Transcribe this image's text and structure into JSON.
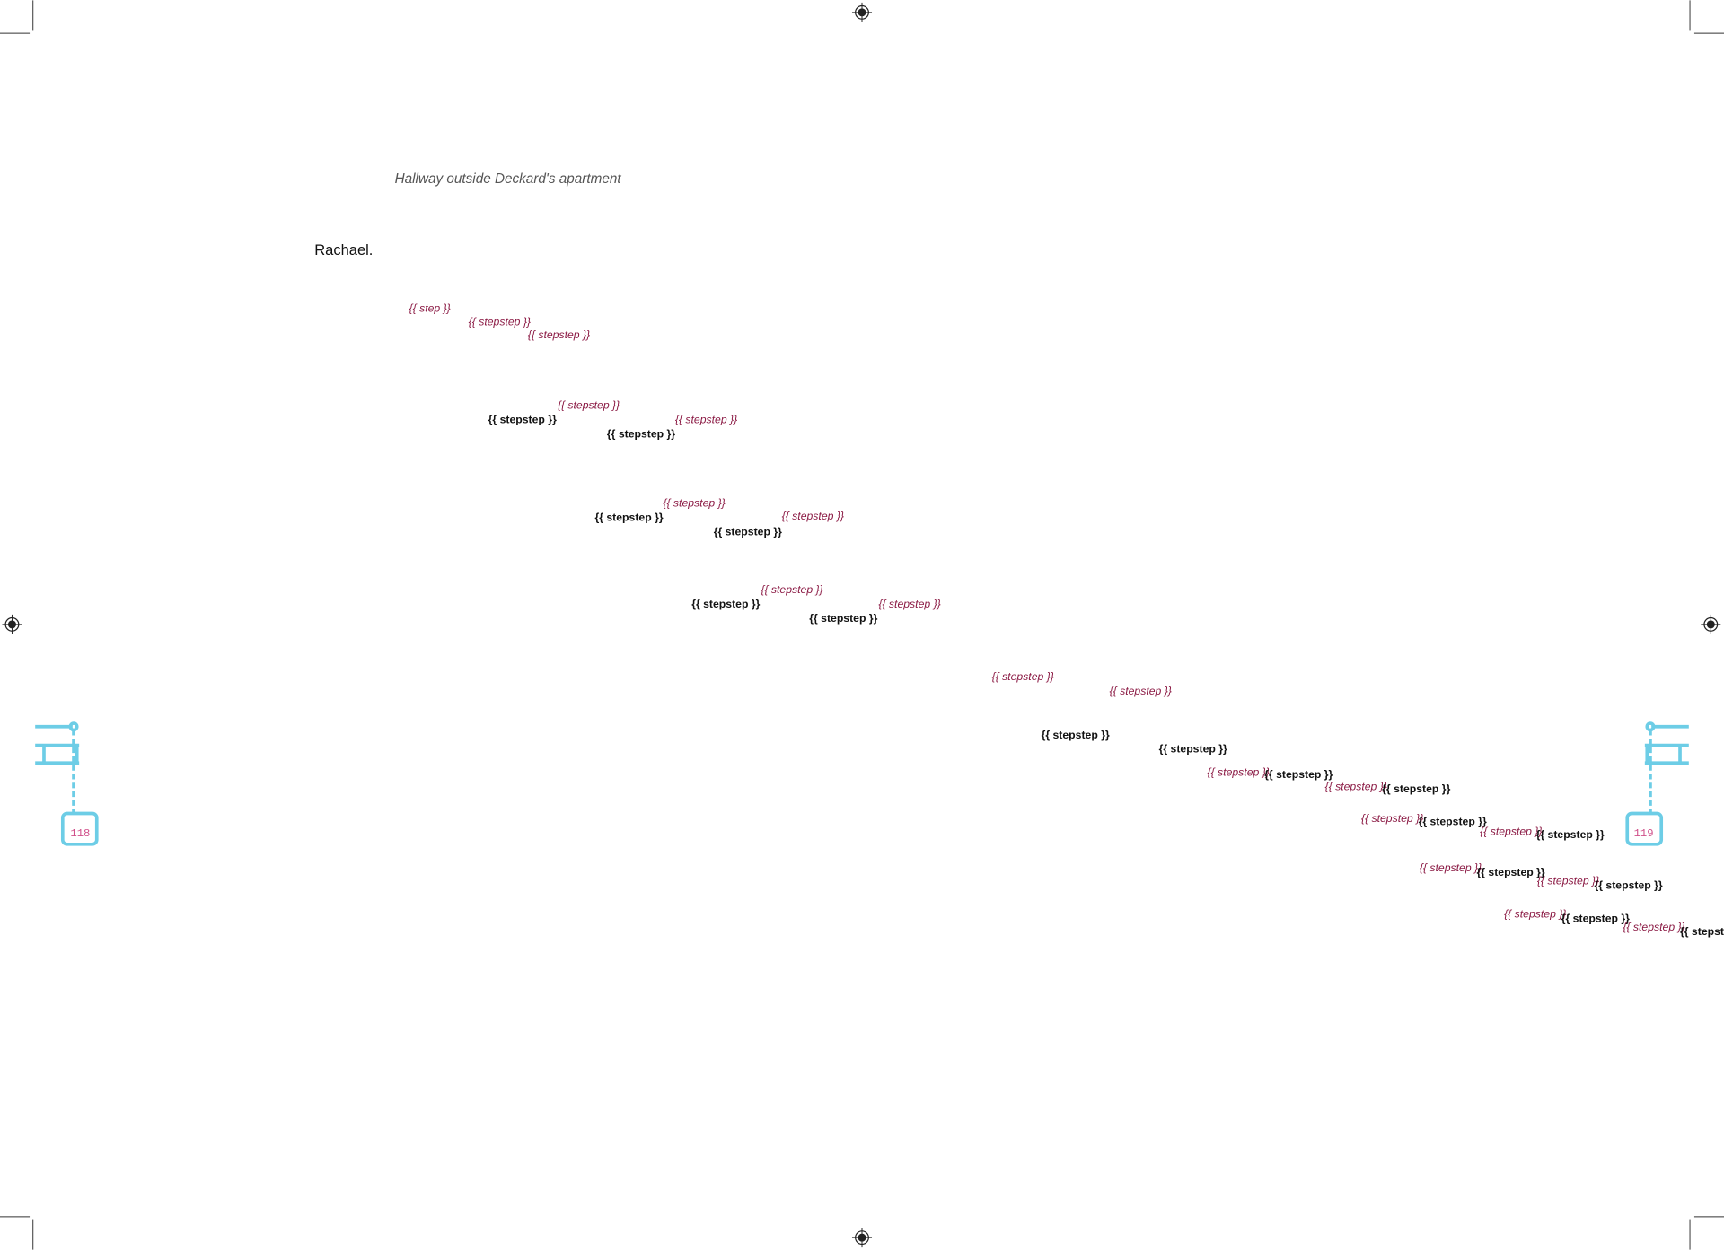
{
  "caption": "Hallway outside Deckard's apartment",
  "speaker": "Rachael.",
  "steps": [
    {
      "text": "{{ step }}",
      "color": "#8b1a44"
    },
    {
      "text": "{{ stepstep }}",
      "color": "#8b1a44"
    },
    {
      "text": "{{ stepstep }}",
      "color": "#8b1a44"
    },
    {
      "text": "{{ stepstep }}",
      "color": "#8b1a44"
    },
    {
      "text": "{{ stepstep }}",
      "color": "#111111"
    },
    {
      "text": "{{ stepstep }}",
      "color": "#8b1a44"
    },
    {
      "text": "{{ stepstep }}",
      "color": "#111111"
    },
    {
      "text": "{{ stepstep }}",
      "color": "#8b1a44"
    },
    {
      "text": "{{ stepstep }}",
      "color": "#111111"
    },
    {
      "text": "{{ stepstep }}",
      "color": "#8b1a44"
    },
    {
      "text": "{{ stepstep }}",
      "color": "#111111"
    },
    {
      "text": "{{ stepstep }}",
      "color": "#8b1a44"
    },
    {
      "text": "{{ stepstep }}",
      "color": "#111111"
    },
    {
      "text": "{{ stepstep }}",
      "color": "#8b1a44"
    },
    {
      "text": "{{ stepstep }}",
      "color": "#111111"
    },
    {
      "text": "{{ stepstep }}",
      "color": "#8b1a44"
    },
    {
      "text": "{{ stepstep }}",
      "color": "#8b1a44"
    },
    {
      "text": "{{ stepstep }}",
      "color": "#111111"
    },
    {
      "text": "{{ stepstep }}",
      "color": "#111111"
    },
    {
      "text": "{{ stepstep }}",
      "color": "#8b1a44"
    },
    {
      "text": "{{ stepstep }}",
      "color": "#111111"
    },
    {
      "text": "{{ stepstep }}",
      "color": "#8b1a44"
    },
    {
      "text": "{{ stepstep }}",
      "color": "#111111"
    },
    {
      "text": "{{ stepstep }}",
      "color": "#8b1a44"
    },
    {
      "text": "{{ stepstep }}",
      "color": "#111111"
    },
    {
      "text": "{{ stepstep }}",
      "color": "#8b1a44"
    },
    {
      "text": "{{ stepstep }}",
      "color": "#111111"
    },
    {
      "text": "{{ stepstep }}",
      "color": "#8b1a44"
    },
    {
      "text": "{{ stepstep }}",
      "color": "#111111"
    },
    {
      "text": "{{ stepstep }}",
      "color": "#8b1a44"
    },
    {
      "text": "{{ stepstep }}",
      "color": "#111111"
    },
    {
      "text": "{{ stepstep }}",
      "color": "#8b1a44"
    },
    {
      "text": "{{ stepstep }}",
      "color": "#111111"
    },
    {
      "text": "{{ stepstep }}",
      "color": "#8b1a44"
    },
    {
      "text": "{{ stepstep }}",
      "color": "#111111"
    }
  ],
  "page_numbers": [
    "118",
    "119"
  ]
}
